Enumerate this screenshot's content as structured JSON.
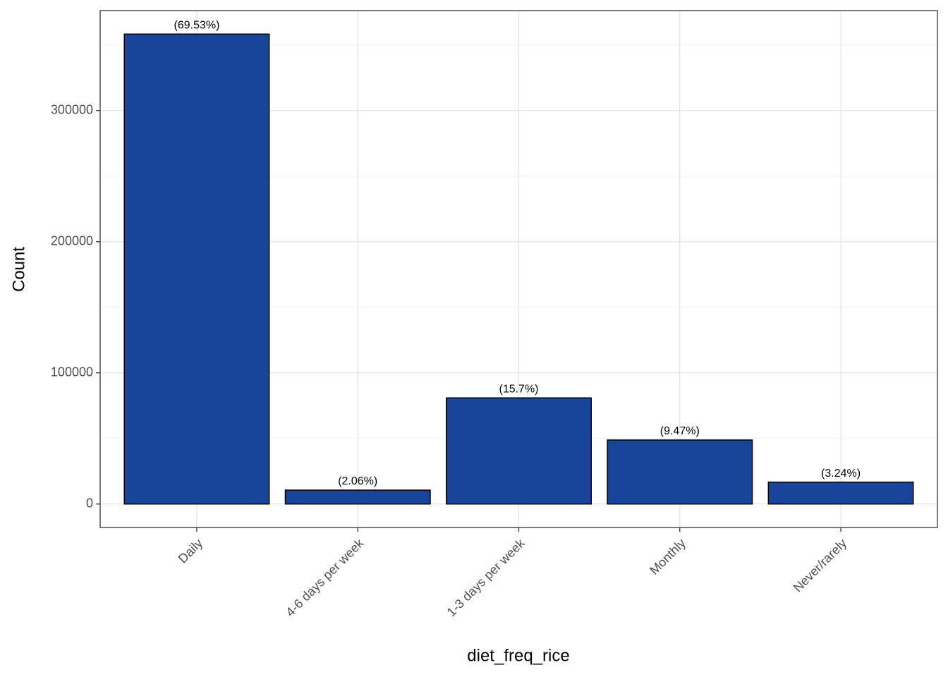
{
  "chart_data": {
    "type": "bar",
    "x_label": "diet_freq_rice",
    "y_label": "Count",
    "categories": [
      "Daily",
      "4-6 days per week",
      "1-3 days per week",
      "Monthly",
      "Never/rarely"
    ],
    "values": [
      358300,
      10600,
      80900,
      48800,
      16700
    ],
    "bar_labels": [
      "(69.53%)",
      "(2.06%)",
      "(15.7%)",
      "(9.47%)",
      "(3.24%)"
    ],
    "color": "#18449a",
    "ylim": [
      -17900,
      376200
    ],
    "yticks": [
      0,
      100000,
      200000,
      300000
    ],
    "minor_yticks": [
      50000,
      150000,
      250000,
      350000
    ],
    "grid": true
  }
}
